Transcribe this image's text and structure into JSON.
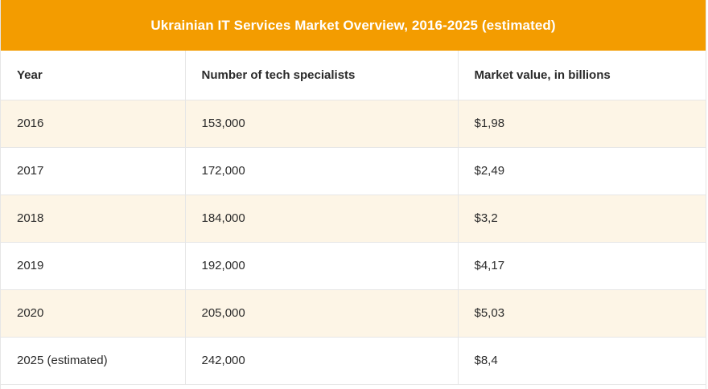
{
  "title": "Ukrainian IT Services Market Overview, 2016-2025 (estimated)",
  "colors": {
    "header_bg": "#f39c00",
    "stripe_bg": "#fdf5e6"
  },
  "table": {
    "headers": [
      "Year",
      "Number of tech specialists",
      "Market value, in billions"
    ],
    "rows": [
      [
        "2016",
        "153,000",
        "$1,98"
      ],
      [
        "2017",
        "172,000",
        "$2,49"
      ],
      [
        "2018",
        "184,000",
        "$3,2"
      ],
      [
        "2019",
        "192,000",
        "$4,17"
      ],
      [
        "2020",
        "205,000",
        "$5,03"
      ],
      [
        "2025 (estimated)",
        "242,000",
        "$8,4"
      ]
    ]
  }
}
